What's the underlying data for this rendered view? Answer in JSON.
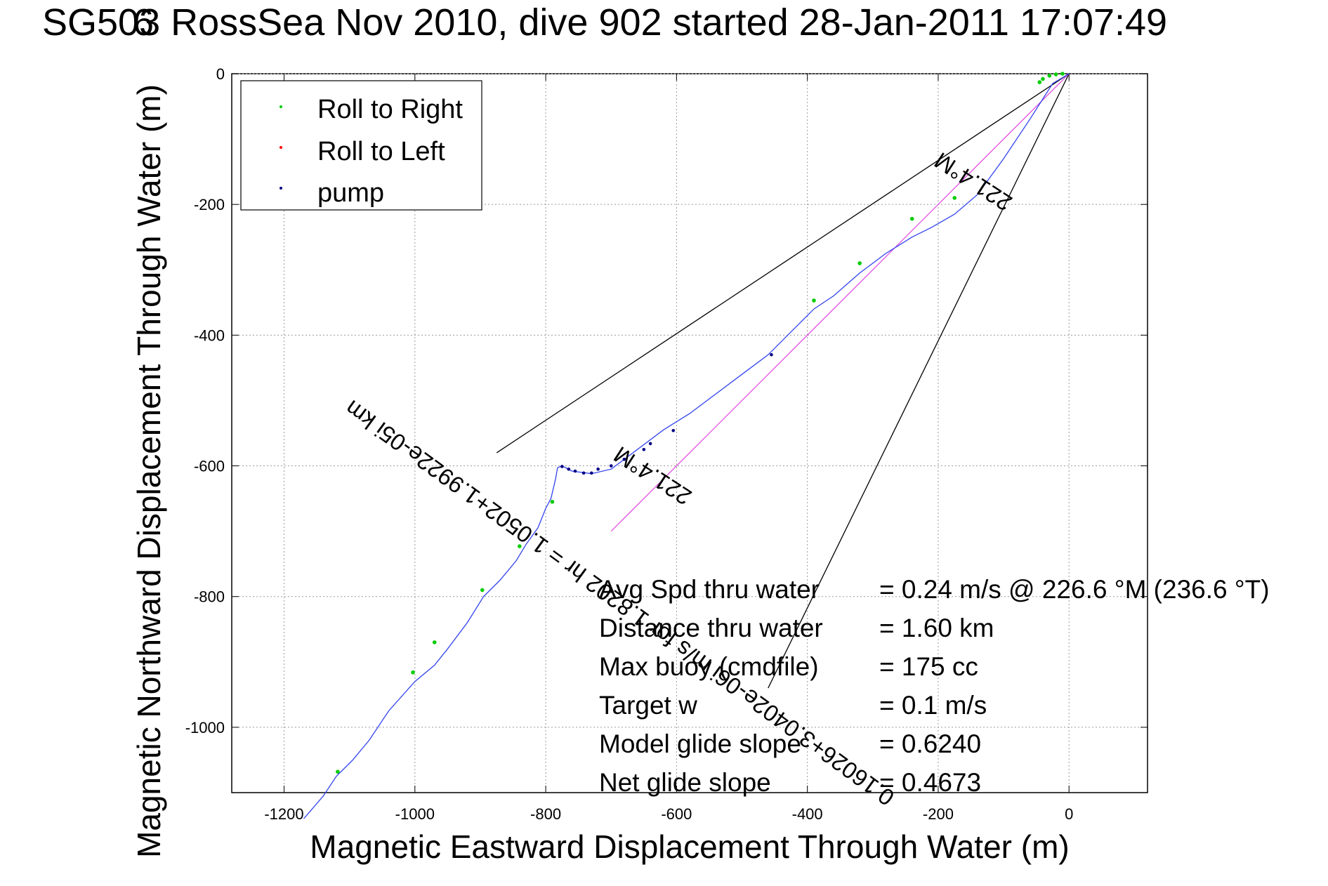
{
  "chart_data": {
    "type": "scatter",
    "title": "SG503 RossSea Nov 2010, dive 902 started 28-Jan-2011 17:07:49",
    "title_overlap_glyph": "6",
    "xlabel": "Magnetic Eastward Displacement Through Water (m)",
    "ylabel": "Magnetic Northward Displacement Through Water (m)",
    "xlim": [
      -1280,
      120
    ],
    "ylim": [
      -1100,
      0
    ],
    "xticks": [
      -1200,
      -1000,
      -800,
      -600,
      -400,
      -200,
      0
    ],
    "yticks": [
      0,
      -200,
      -400,
      -600,
      -800,
      -1000
    ],
    "grid": true,
    "legend_position": "top-left",
    "legend": [
      {
        "label": "Roll to Right",
        "color": "#00cc00"
      },
      {
        "label": "Roll to Left",
        "color": "#ff0000"
      },
      {
        "label": "pump",
        "color": "#000080"
      }
    ],
    "track": {
      "name": "glider track",
      "color": "#3344ee",
      "x": [
        0,
        -25,
        -60,
        -100,
        -140,
        -175,
        -210,
        -240,
        -280,
        -320,
        -360,
        -390,
        -420,
        -460,
        -500,
        -540,
        -580,
        -620,
        -660,
        -700,
        -730,
        -760,
        -775,
        -782,
        -785,
        -792,
        -800,
        -812,
        -830,
        -845,
        -870,
        -895,
        -920,
        -950,
        -970,
        -1000,
        -1040,
        -1070,
        -1095,
        -1120,
        -1140,
        -1170
      ],
      "y": [
        0,
        -15,
        -70,
        -130,
        -185,
        -215,
        -235,
        -250,
        -275,
        -305,
        -340,
        -360,
        -390,
        -430,
        -460,
        -490,
        -520,
        -545,
        -575,
        -605,
        -612,
        -608,
        -600,
        -603,
        -620,
        -650,
        -665,
        -695,
        -720,
        -745,
        -775,
        -800,
        -840,
        -880,
        -905,
        -930,
        -975,
        -1020,
        -1050,
        -1075,
        -1105,
        -1140
      ]
    },
    "roll_right_x": [
      -10,
      -20,
      -30,
      -40,
      -45,
      -175,
      -240,
      -320,
      -390,
      -790,
      -840,
      -897,
      -970,
      -1003,
      -1118
    ],
    "roll_right_y": [
      0,
      -1,
      -3,
      -8,
      -13,
      -190,
      -222,
      -290,
      -347,
      -655,
      -723,
      -790,
      -870,
      -916,
      -1068
    ],
    "pump_x": [
      -455,
      -605,
      -640,
      -650,
      -680,
      -700,
      -720,
      -730,
      -742,
      -755,
      -765,
      -775
    ],
    "pump_y": [
      -430,
      -546,
      -566,
      -575,
      -590,
      -600,
      -605,
      -611,
      -611,
      -608,
      -605,
      -601
    ],
    "guide_lines": [
      {
        "x": [
          0,
          -875
        ],
        "y": [
          0,
          -580
        ]
      },
      {
        "x": [
          0,
          -460
        ],
        "y": [
          0,
          -940
        ]
      }
    ],
    "heading_line": {
      "color": "#dd44dd",
      "x": [
        0,
        -700
      ],
      "y": [
        0,
        -700
      ]
    },
    "rotated_annotations": [
      {
        "text": "221.4°M",
        "anchor_x": -140,
        "anchor_y": -155,
        "angle": 213
      },
      {
        "text": "0.16026+3.0402e-06i m/s for 1.8202 hr = 1.0502+1.9922e-05i km",
        "anchor_x": -680,
        "anchor_y": -800,
        "angle": 216
      },
      {
        "text": "221.4°M",
        "anchor_x": -630,
        "anchor_y": -605,
        "angle": 213
      }
    ],
    "stats": [
      {
        "label": "Avg Spd thru water",
        "value": "=  0.24 m/s @ 226.6 °M (236.6 °T)"
      },
      {
        "label": "Distance thru water",
        "value": "=  1.60 km"
      },
      {
        "label": "Max buoy (cmdfile)",
        "value": "= 175 cc"
      },
      {
        "label": "Target w",
        "value": "= 0.1 m/s"
      },
      {
        "label": "Model glide slope",
        "value": "= 0.6240"
      },
      {
        "label": "Net glide slope",
        "value": "= 0.4673"
      }
    ]
  }
}
